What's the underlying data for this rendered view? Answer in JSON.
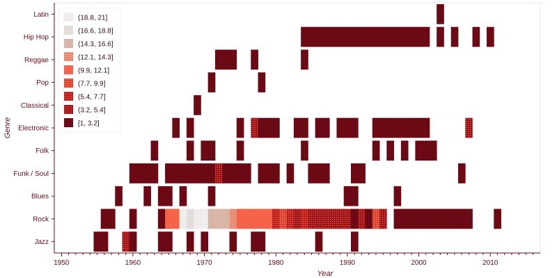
{
  "chart_data": {
    "type": "heatmap",
    "title": "",
    "xlabel": "Year",
    "ylabel": "Genre",
    "xlim": [
      1949,
      2017
    ],
    "x_ticks": [
      1950,
      1960,
      1970,
      1980,
      1990,
      2000,
      2010
    ],
    "genres": [
      "Latin",
      "Hip Hop",
      "Reggae",
      "Pop",
      "Classical",
      "Electronic",
      "Folk",
      "Funk / Soul",
      "Blues",
      "Rock",
      "Jazz"
    ],
    "grid": false,
    "legend_position": "top-left",
    "legend": [
      {
        "label": "(18.8, 21]",
        "color": "#f2efee",
        "pattern": "dots"
      },
      {
        "label": "(16.6, 18.8]",
        "color": "#e3dcda",
        "pattern": "none"
      },
      {
        "label": "(14.3, 16.6]",
        "color": "#d9b5a8",
        "pattern": "none"
      },
      {
        "label": "(12.1, 14.3]",
        "color": "#f08a72",
        "pattern": "dots"
      },
      {
        "label": "(9.9, 12.1]",
        "color": "#f5644a",
        "pattern": "none"
      },
      {
        "label": "(7.7, 9.9]",
        "color": "#e8452e",
        "pattern": "dots"
      },
      {
        "label": "(5.4, 7.7]",
        "color": "#c8201c",
        "pattern": "dots"
      },
      {
        "label": "(3.2, 5.4]",
        "color": "#a81416",
        "pattern": "dots"
      },
      {
        "label": "[1, 3.2]",
        "color": "#6b0a14",
        "pattern": "none"
      }
    ],
    "cells": {
      "Latin": [
        [
          2003,
          1
        ]
      ],
      "Hip Hop": [
        [
          1984,
          1
        ],
        [
          1985,
          1
        ],
        [
          1986,
          1
        ],
        [
          1987,
          1
        ],
        [
          1988,
          1
        ],
        [
          1989,
          1
        ],
        [
          1990,
          1
        ],
        [
          1991,
          1
        ],
        [
          1992,
          1
        ],
        [
          1993,
          1
        ],
        [
          1994,
          1
        ],
        [
          1995,
          1
        ],
        [
          1996,
          1
        ],
        [
          1997,
          1
        ],
        [
          1998,
          1
        ],
        [
          1999,
          1
        ],
        [
          2000,
          1
        ],
        [
          2001,
          1
        ],
        [
          2003,
          1
        ],
        [
          2005,
          1
        ],
        [
          2008,
          1
        ],
        [
          2010,
          1
        ]
      ],
      "Reggae": [
        [
          1972,
          1
        ],
        [
          1973,
          1
        ],
        [
          1974,
          1
        ],
        [
          1977,
          1
        ],
        [
          1984,
          1
        ]
      ],
      "Pop": [
        [
          1971,
          1
        ],
        [
          1978,
          1
        ]
      ],
      "Classical": [
        [
          1969,
          1
        ]
      ],
      "Electronic": [
        [
          1966,
          1
        ],
        [
          1968,
          1
        ],
        [
          1975,
          1
        ],
        [
          1977,
          4
        ],
        [
          1978,
          1
        ],
        [
          1979,
          1
        ],
        [
          1980,
          1
        ],
        [
          1983,
          1
        ],
        [
          1984,
          1
        ],
        [
          1986,
          1
        ],
        [
          1987,
          1
        ],
        [
          1989,
          1
        ],
        [
          1990,
          1
        ],
        [
          1991,
          1
        ],
        [
          1994,
          1
        ],
        [
          1995,
          1
        ],
        [
          1996,
          1
        ],
        [
          1997,
          1
        ],
        [
          1998,
          1
        ],
        [
          1999,
          1
        ],
        [
          2000,
          1
        ],
        [
          2001,
          1
        ],
        [
          2007,
          5
        ]
      ],
      "Folk": [
        [
          1963,
          1
        ],
        [
          1968,
          1
        ],
        [
          1970,
          1
        ],
        [
          1971,
          1
        ],
        [
          1975,
          1
        ],
        [
          1984,
          1
        ],
        [
          1994,
          1
        ],
        [
          1996,
          1
        ],
        [
          1998,
          1
        ],
        [
          2000,
          1
        ],
        [
          2001,
          1
        ],
        [
          2002,
          1
        ]
      ],
      "Funk / Soul": [
        [
          1960,
          1
        ],
        [
          1961,
          1
        ],
        [
          1962,
          1
        ],
        [
          1963,
          1
        ],
        [
          1965,
          1
        ],
        [
          1966,
          1
        ],
        [
          1967,
          1
        ],
        [
          1968,
          1
        ],
        [
          1969,
          1
        ],
        [
          1970,
          1
        ],
        [
          1971,
          1
        ],
        [
          1972,
          4
        ],
        [
          1973,
          3
        ],
        [
          1974,
          1
        ],
        [
          1975,
          1
        ],
        [
          1976,
          1
        ],
        [
          1978,
          1
        ],
        [
          1979,
          1
        ],
        [
          1980,
          1
        ],
        [
          1982,
          1
        ],
        [
          1985,
          1
        ],
        [
          1986,
          1
        ],
        [
          1987,
          1
        ],
        [
          1991,
          1
        ],
        [
          1992,
          1
        ],
        [
          2006,
          1
        ]
      ],
      "Blues": [
        [
          1958,
          1
        ],
        [
          1962,
          1
        ],
        [
          1964,
          1
        ],
        [
          1965,
          1
        ],
        [
          1967,
          1
        ],
        [
          1971,
          1
        ],
        [
          1990,
          1
        ],
        [
          1991,
          1
        ],
        [
          1997,
          1
        ]
      ],
      "Rock": [
        [
          1956,
          1
        ],
        [
          1957,
          1
        ],
        [
          1960,
          1
        ],
        [
          1964,
          1
        ],
        [
          1965,
          10
        ],
        [
          1966,
          10
        ],
        [
          1967,
          19
        ],
        [
          1968,
          17
        ],
        [
          1969,
          20
        ],
        [
          1970,
          20
        ],
        [
          1971,
          15
        ],
        [
          1972,
          15
        ],
        [
          1973,
          15
        ],
        [
          1974,
          13
        ],
        [
          1975,
          12
        ],
        [
          1976,
          11
        ],
        [
          1977,
          11
        ],
        [
          1978,
          11
        ],
        [
          1979,
          11
        ],
        [
          1980,
          6
        ],
        [
          1981,
          8
        ],
        [
          1982,
          6
        ],
        [
          1983,
          5
        ],
        [
          1984,
          6
        ],
        [
          1985,
          4
        ],
        [
          1986,
          4
        ],
        [
          1987,
          4
        ],
        [
          1988,
          4
        ],
        [
          1989,
          5
        ],
        [
          1990,
          4
        ],
        [
          1991,
          3
        ],
        [
          1992,
          5
        ],
        [
          1993,
          3
        ],
        [
          1994,
          9
        ],
        [
          1995,
          4
        ],
        [
          1997,
          1
        ],
        [
          1998,
          1
        ],
        [
          1999,
          1
        ],
        [
          2000,
          1
        ],
        [
          2001,
          3
        ],
        [
          2002,
          3
        ],
        [
          2003,
          1
        ],
        [
          2004,
          1
        ],
        [
          2005,
          1
        ],
        [
          2006,
          1
        ],
        [
          2007,
          1
        ],
        [
          2011,
          1
        ]
      ],
      "Jazz": [
        [
          1955,
          1
        ],
        [
          1956,
          1
        ],
        [
          1959,
          5
        ],
        [
          1960,
          1
        ],
        [
          1964,
          1
        ],
        [
          1965,
          1
        ],
        [
          1968,
          1
        ],
        [
          1970,
          1
        ],
        [
          1974,
          1
        ],
        [
          1977,
          1
        ],
        [
          1978,
          1
        ],
        [
          1986,
          1
        ],
        [
          1991,
          1
        ]
      ]
    }
  }
}
